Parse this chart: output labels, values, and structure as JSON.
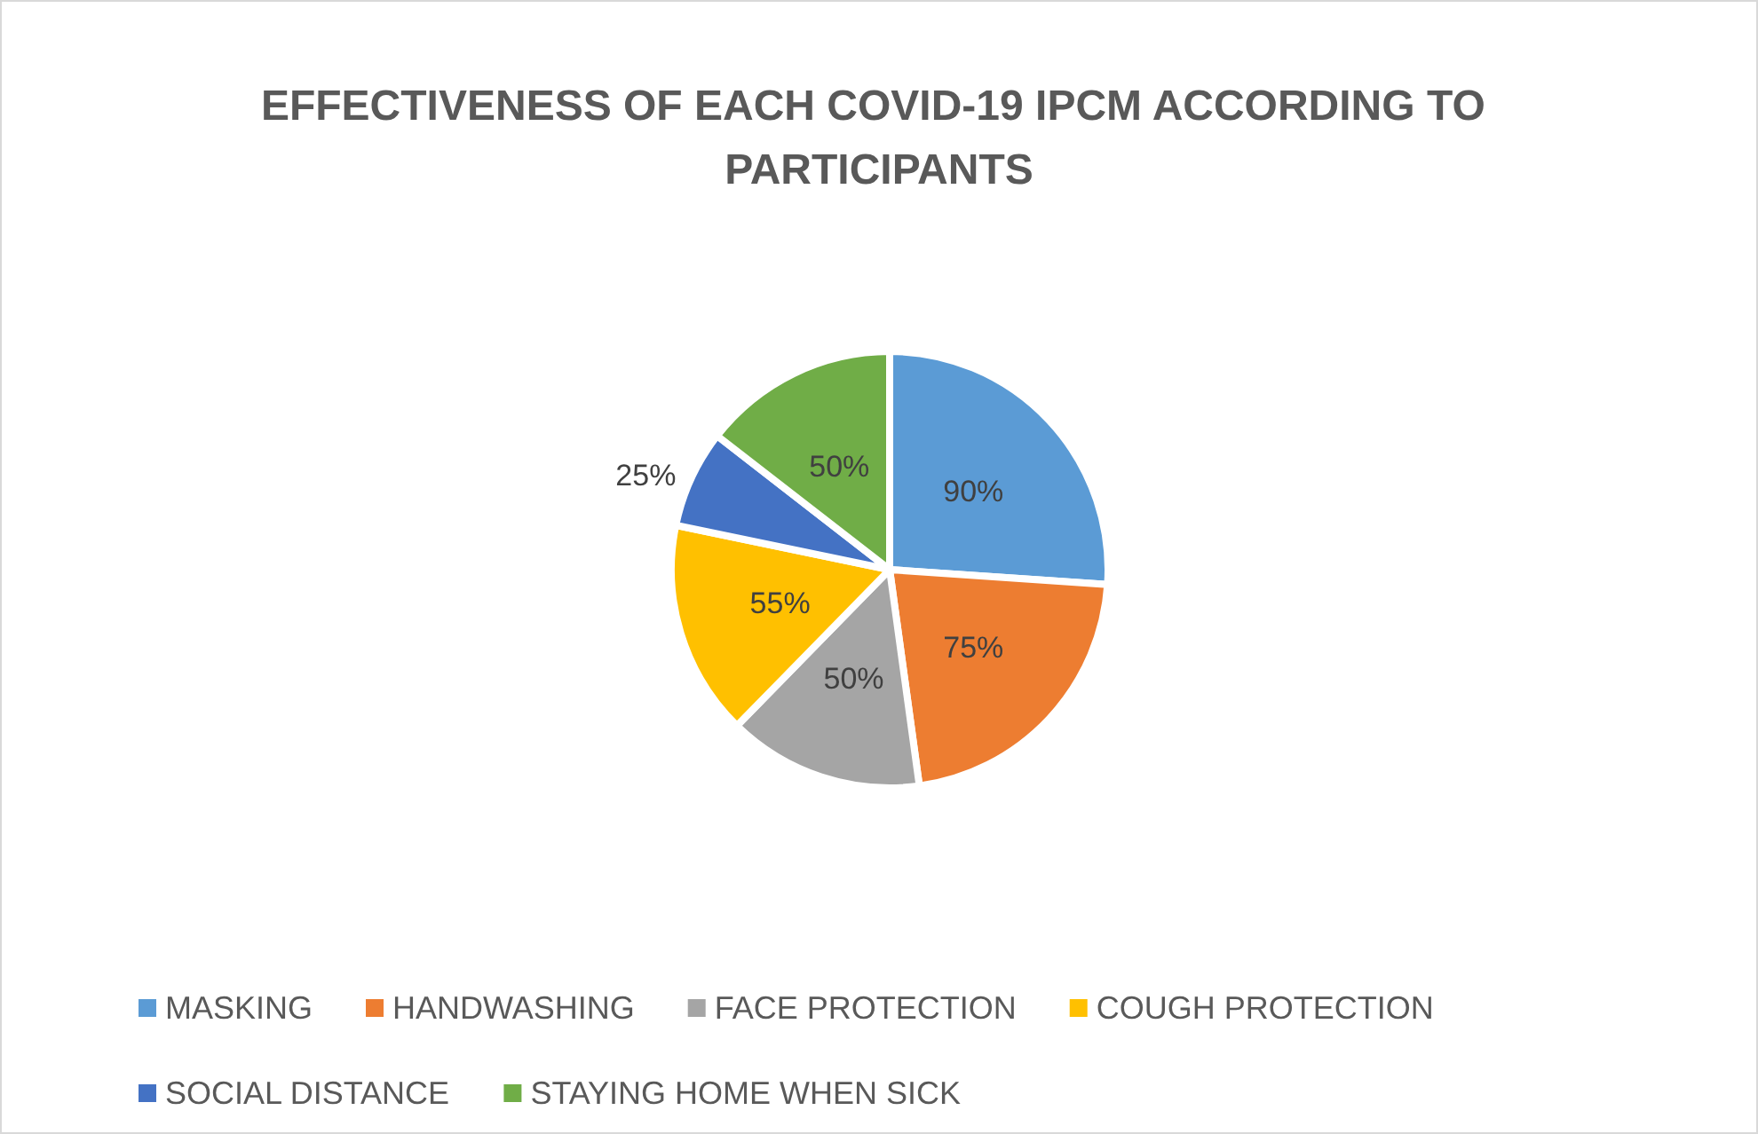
{
  "chart_data": {
    "type": "pie",
    "title": "EFFECTIVENESS OF EACH COVID-19 IPCM ACCORDING TO PARTICIPANTS",
    "categories": [
      "MASKING",
      "HANDWASHING",
      "FACE PROTECTION",
      "COUGH PROTECTION",
      "SOCIAL DISTANCE",
      "STAYING HOME WHEN SICK"
    ],
    "values": [
      90,
      75,
      50,
      55,
      25,
      50
    ],
    "value_labels": [
      "90%",
      "75%",
      "50%",
      "55%",
      "25%",
      "50%"
    ],
    "colors": [
      "#5b9bd5",
      "#ed7d31",
      "#a5a5a5",
      "#ffc000",
      "#4472c4",
      "#70ad47"
    ],
    "legend": "bottom"
  }
}
